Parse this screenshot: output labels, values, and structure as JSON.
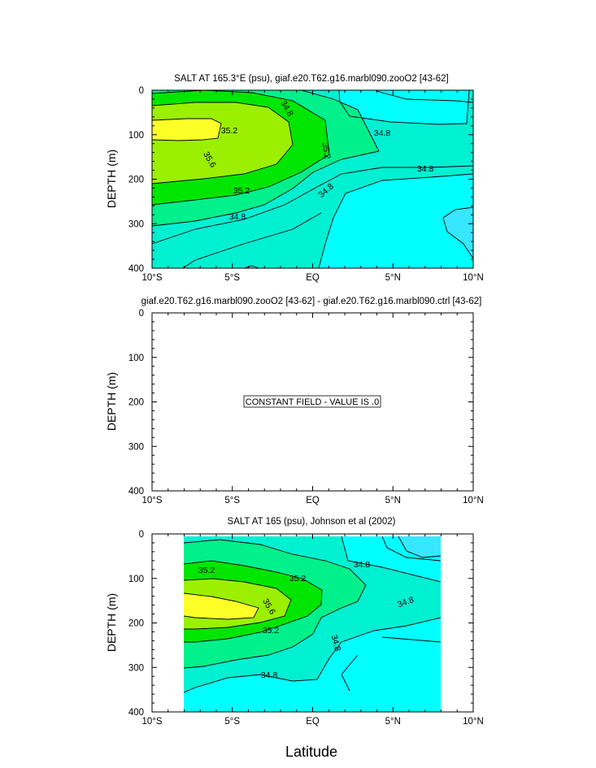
{
  "figure": {
    "xlabel": "Latitude"
  },
  "chart_data": [
    {
      "type": "contour",
      "title": "SALT AT 165.3°E (psu), giaf.e20.T62.g16.marbl090.zooO2 [43-62]",
      "ylabel": "DEPTH (m)",
      "x_ticks": [
        "10°S",
        "5°S",
        "EQ",
        "5°N",
        "10°N"
      ],
      "y_ticks": [
        "0",
        "100",
        "200",
        "300",
        "400"
      ],
      "xlim": [
        -10,
        10
      ],
      "ylim": [
        400,
        0
      ],
      "contour_labels": [
        "34.8",
        "35.2",
        "35.6",
        "35.2",
        "34.8",
        "34.8",
        "34.8",
        "35.2",
        "34.8"
      ]
    },
    {
      "type": "contour",
      "title": "giaf.e20.T62.g16.marbl090.zooO2 [43-62] - giaf.e20.T62.g16.marbl090.ctrl [43-62]",
      "ylabel": "DEPTH (m)",
      "x_ticks": [
        "10°S",
        "5°S",
        "EQ",
        "5°N",
        "10°N"
      ],
      "y_ticks": [
        "0",
        "100",
        "200",
        "300",
        "400"
      ],
      "xlim": [
        -10,
        10
      ],
      "ylim": [
        400,
        0
      ],
      "annotation": "CONSTANT FIELD - VALUE IS .0"
    },
    {
      "type": "contour",
      "title": "SALT AT 165 (psu), Johnson et al (2002)",
      "ylabel": "DEPTH (m)",
      "x_ticks": [
        "10°S",
        "5°S",
        "EQ",
        "5°N",
        "10°N"
      ],
      "y_ticks": [
        "0",
        "100",
        "200",
        "300",
        "400"
      ],
      "xlim": [
        -10,
        10
      ],
      "ylim": [
        400,
        0
      ],
      "contour_labels": [
        "35.2",
        "35.2",
        "34.8",
        "34.8",
        "35.6",
        "35.2",
        "34.8",
        "34.8"
      ]
    }
  ]
}
